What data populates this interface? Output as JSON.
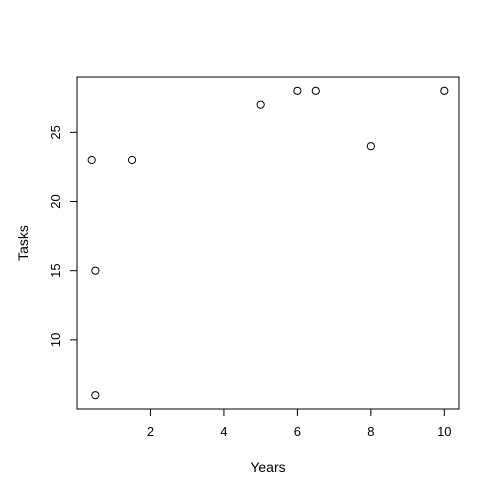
{
  "chart_data": {
    "type": "scatter",
    "xlabel": "Years",
    "ylabel": "Tasks",
    "xlim": [
      0.0,
      10.4
    ],
    "ylim": [
      5.0,
      29.0
    ],
    "xticks": [
      2,
      4,
      6,
      8,
      10
    ],
    "yticks": [
      10,
      15,
      20,
      25
    ],
    "x": [
      0.4,
      0.5,
      0.5,
      1.5,
      5.0,
      6.0,
      6.5,
      8.0,
      10.0
    ],
    "y": [
      23,
      15,
      6,
      23,
      27,
      28,
      28,
      24,
      28
    ],
    "grid": false,
    "point_color": "#000000"
  }
}
